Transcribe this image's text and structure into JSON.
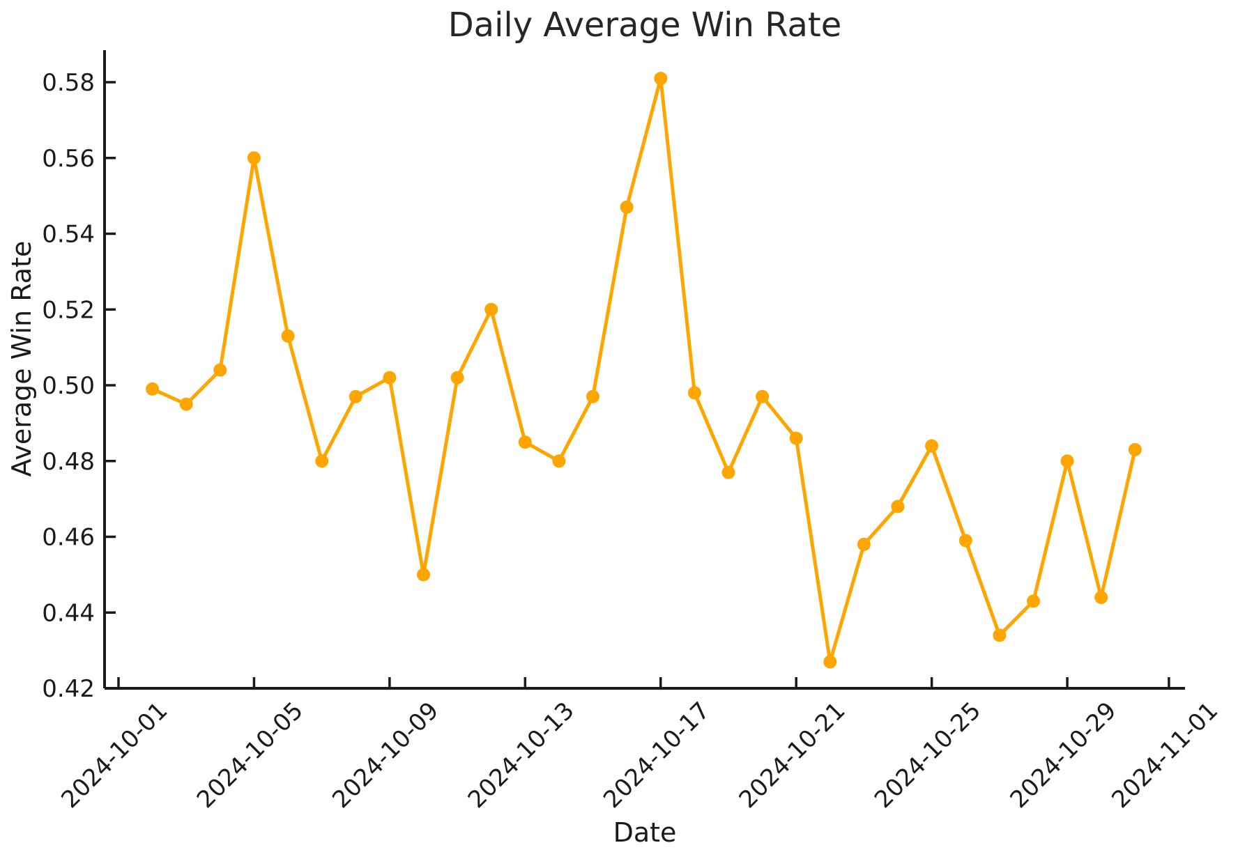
{
  "chart_data": {
    "type": "line",
    "title": "Daily Average Win Rate",
    "xlabel": "Date",
    "ylabel": "Average Win Rate",
    "grid": false,
    "legend": null,
    "line_color": "#FFA500",
    "marker": "circle",
    "ylim": [
      0.42,
      0.5885
    ],
    "y_ticks": [
      0.42,
      0.44,
      0.46,
      0.48,
      0.5,
      0.52,
      0.54,
      0.56,
      0.58
    ],
    "x_ticks": [
      {
        "label": "2024-10-01",
        "day": 1
      },
      {
        "label": "2024-10-05",
        "day": 5
      },
      {
        "label": "2024-10-09",
        "day": 9
      },
      {
        "label": "2024-10-13",
        "day": 13
      },
      {
        "label": "2024-10-17",
        "day": 17
      },
      {
        "label": "2024-10-21",
        "day": 21
      },
      {
        "label": "2024-10-25",
        "day": 25
      },
      {
        "label": "2024-10-29",
        "day": 29
      },
      {
        "label": "2024-11-01",
        "day": 32
      }
    ],
    "series": [
      {
        "name": "Daily average win rate",
        "color": "#FFA500",
        "x": [
          "2024-10-02",
          "2024-10-03",
          "2024-10-04",
          "2024-10-05",
          "2024-10-06",
          "2024-10-07",
          "2024-10-08",
          "2024-10-09",
          "2024-10-10",
          "2024-10-11",
          "2024-10-12",
          "2024-10-13",
          "2024-10-14",
          "2024-10-15",
          "2024-10-16",
          "2024-10-17",
          "2024-10-18",
          "2024-10-19",
          "2024-10-20",
          "2024-10-21",
          "2024-10-22",
          "2024-10-23",
          "2024-10-24",
          "2024-10-25",
          "2024-10-26",
          "2024-10-27",
          "2024-10-28",
          "2024-10-29",
          "2024-10-30",
          "2024-10-31"
        ],
        "y": [
          0.499,
          0.495,
          0.504,
          0.56,
          0.513,
          0.48,
          0.497,
          0.502,
          0.45,
          0.502,
          0.52,
          0.485,
          0.48,
          0.497,
          0.547,
          0.581,
          0.498,
          0.477,
          0.497,
          0.486,
          0.427,
          0.458,
          0.468,
          0.484,
          0.459,
          0.434,
          0.443,
          0.48,
          0.444,
          0.483
        ]
      }
    ]
  }
}
